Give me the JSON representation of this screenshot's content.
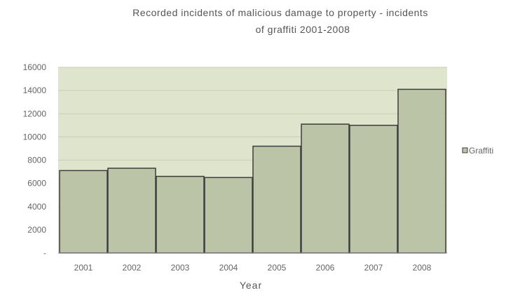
{
  "chart_data": {
    "type": "bar",
    "title_line1": "Recorded incidents of malicious damage to property - incidents",
    "title_line2": "of graffiti 2001-2008",
    "xlabel": "Year",
    "ylabel": "",
    "categories": [
      "2001",
      "2002",
      "2003",
      "2004",
      "2005",
      "2006",
      "2007",
      "2008"
    ],
    "series": [
      {
        "name": "Graffiti",
        "values": [
          7100,
          7300,
          6600,
          6500,
          9200,
          11100,
          11000,
          14100
        ]
      }
    ],
    "ylim": [
      0,
      16000
    ],
    "yticks": [
      0,
      2000,
      4000,
      6000,
      8000,
      10000,
      12000,
      14000,
      16000
    ],
    "ytick_labels": [
      "-",
      "2000",
      "4000",
      "6000",
      "8000",
      "10000",
      "12000",
      "14000",
      "16000"
    ],
    "grid": true,
    "legend_position": "right",
    "colors": {
      "bar_fill": "#bcc4a8",
      "bar_stroke": "#3d3d3d",
      "plot_background": "#dfe5cc",
      "gridline": "#c9cfb6"
    }
  }
}
